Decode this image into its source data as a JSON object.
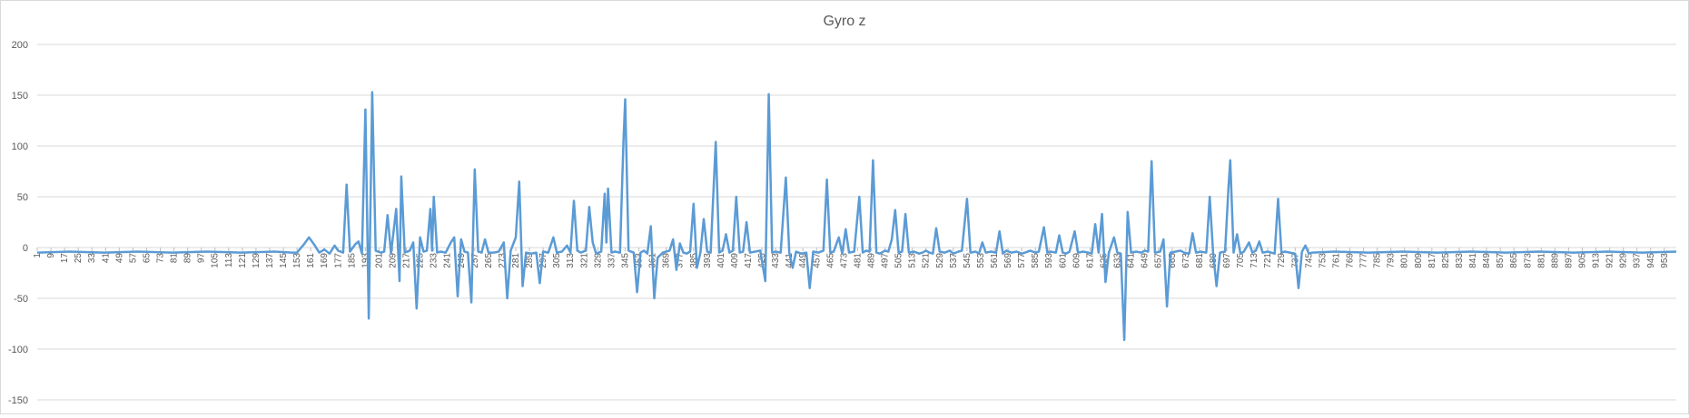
{
  "chart_data": {
    "type": "line",
    "title": "Gyro z",
    "xlabel": "",
    "ylabel": "",
    "ylim": [
      -150,
      200
    ],
    "yticks": [
      200,
      150,
      100,
      50,
      0,
      -50,
      -100,
      -150
    ],
    "x_range": [
      1,
      960
    ],
    "x_tick_step": 8,
    "grid": "horizontal",
    "legend": "none",
    "series": [
      {
        "color": "#5b9bd5",
        "points": [
          [
            1,
            -5
          ],
          [
            20,
            -4
          ],
          [
            40,
            -5
          ],
          [
            60,
            -4
          ],
          [
            80,
            -5
          ],
          [
            100,
            -4
          ],
          [
            120,
            -5
          ],
          [
            140,
            -4
          ],
          [
            150,
            -5
          ],
          [
            153,
            -5
          ],
          [
            157,
            3
          ],
          [
            160,
            10
          ],
          [
            163,
            3
          ],
          [
            166,
            -5
          ],
          [
            169,
            -2
          ],
          [
            172,
            -6
          ],
          [
            175,
            2
          ],
          [
            177,
            -3
          ],
          [
            180,
            -5
          ],
          [
            182,
            62
          ],
          [
            184,
            -4
          ],
          [
            187,
            3
          ],
          [
            189,
            6
          ],
          [
            191,
            -6
          ],
          [
            193,
            136
          ],
          [
            195,
            -70
          ],
          [
            197,
            153
          ],
          [
            199,
            -3
          ],
          [
            202,
            -5
          ],
          [
            204,
            -4
          ],
          [
            206,
            32
          ],
          [
            208,
            -6
          ],
          [
            211,
            38
          ],
          [
            213,
            -33
          ],
          [
            214,
            70
          ],
          [
            216,
            -5
          ],
          [
            219,
            -3
          ],
          [
            221,
            5
          ],
          [
            223,
            -60
          ],
          [
            225,
            10
          ],
          [
            227,
            -4
          ],
          [
            229,
            -3
          ],
          [
            231,
            38
          ],
          [
            232,
            -3
          ],
          [
            233,
            50
          ],
          [
            235,
            -5
          ],
          [
            237,
            -4
          ],
          [
            240,
            -5
          ],
          [
            243,
            5
          ],
          [
            245,
            10
          ],
          [
            247,
            -48
          ],
          [
            249,
            8
          ],
          [
            251,
            -4
          ],
          [
            253,
            -5
          ],
          [
            255,
            -54
          ],
          [
            257,
            77
          ],
          [
            259,
            -4
          ],
          [
            261,
            -5
          ],
          [
            263,
            8
          ],
          [
            265,
            -5
          ],
          [
            268,
            -5
          ],
          [
            271,
            -4
          ],
          [
            274,
            5
          ],
          [
            276,
            -50
          ],
          [
            278,
            -3
          ],
          [
            281,
            10
          ],
          [
            283,
            65
          ],
          [
            285,
            -38
          ],
          [
            287,
            -5
          ],
          [
            290,
            -6
          ],
          [
            293,
            -5
          ],
          [
            295,
            -35
          ],
          [
            297,
            -4
          ],
          [
            300,
            -5
          ],
          [
            303,
            10
          ],
          [
            305,
            -5
          ],
          [
            308,
            -4
          ],
          [
            311,
            2
          ],
          [
            313,
            -5
          ],
          [
            315,
            46
          ],
          [
            317,
            -3
          ],
          [
            319,
            -5
          ],
          [
            322,
            -3
          ],
          [
            324,
            40
          ],
          [
            326,
            5
          ],
          [
            328,
            -6
          ],
          [
            331,
            -4
          ],
          [
            333,
            53
          ],
          [
            334,
            5
          ],
          [
            335,
            58
          ],
          [
            337,
            -5
          ],
          [
            339,
            -4
          ],
          [
            342,
            -5
          ],
          [
            344,
            105
          ],
          [
            345,
            146
          ],
          [
            347,
            -3
          ],
          [
            350,
            -5
          ],
          [
            352,
            -44
          ],
          [
            354,
            -5
          ],
          [
            356,
            -3
          ],
          [
            358,
            -6
          ],
          [
            360,
            21
          ],
          [
            362,
            -50
          ],
          [
            364,
            -10
          ],
          [
            367,
            -5
          ],
          [
            369,
            -4
          ],
          [
            371,
            -3
          ],
          [
            373,
            8
          ],
          [
            375,
            -22
          ],
          [
            377,
            4
          ],
          [
            379,
            -5
          ],
          [
            381,
            -6
          ],
          [
            383,
            -4
          ],
          [
            385,
            43
          ],
          [
            387,
            -20
          ],
          [
            389,
            -5
          ],
          [
            391,
            28
          ],
          [
            393,
            -4
          ],
          [
            395,
            -5
          ],
          [
            398,
            104
          ],
          [
            400,
            -5
          ],
          [
            402,
            -3
          ],
          [
            404,
            13
          ],
          [
            406,
            -5
          ],
          [
            408,
            -3
          ],
          [
            410,
            50
          ],
          [
            412,
            -5
          ],
          [
            414,
            -4
          ],
          [
            416,
            25
          ],
          [
            418,
            -5
          ],
          [
            421,
            -4
          ],
          [
            424,
            -3
          ],
          [
            427,
            -33
          ],
          [
            429,
            151
          ],
          [
            431,
            -5
          ],
          [
            433,
            -4
          ],
          [
            436,
            -5
          ],
          [
            439,
            69
          ],
          [
            441,
            -5
          ],
          [
            443,
            -20
          ],
          [
            445,
            -4
          ],
          [
            448,
            -6
          ],
          [
            451,
            -5
          ],
          [
            453,
            -40
          ],
          [
            455,
            -4
          ],
          [
            458,
            -5
          ],
          [
            461,
            -3
          ],
          [
            463,
            67
          ],
          [
            465,
            -5
          ],
          [
            467,
            -4
          ],
          [
            470,
            10
          ],
          [
            472,
            -6
          ],
          [
            474,
            18
          ],
          [
            476,
            -5
          ],
          [
            479,
            -4
          ],
          [
            482,
            50
          ],
          [
            484,
            -5
          ],
          [
            486,
            -3
          ],
          [
            488,
            -4
          ],
          [
            490,
            86
          ],
          [
            492,
            -5
          ],
          [
            494,
            -6
          ],
          [
            497,
            -3
          ],
          [
            499,
            -4
          ],
          [
            501,
            8
          ],
          [
            503,
            37
          ],
          [
            505,
            -5
          ],
          [
            507,
            -4
          ],
          [
            509,
            33
          ],
          [
            511,
            -5
          ],
          [
            514,
            -4
          ],
          [
            517,
            -6
          ],
          [
            519,
            -5
          ],
          [
            521,
            -3
          ],
          [
            523,
            -5
          ],
          [
            525,
            -6
          ],
          [
            527,
            19
          ],
          [
            529,
            -4
          ],
          [
            532,
            -5
          ],
          [
            535,
            -3
          ],
          [
            537,
            -6
          ],
          [
            540,
            -4
          ],
          [
            542,
            -3
          ],
          [
            545,
            48
          ],
          [
            547,
            -5
          ],
          [
            550,
            -4
          ],
          [
            552,
            -6
          ],
          [
            554,
            5
          ],
          [
            556,
            -5
          ],
          [
            559,
            -4
          ],
          [
            562,
            -5
          ],
          [
            564,
            16
          ],
          [
            566,
            -6
          ],
          [
            568,
            -3
          ],
          [
            571,
            -5
          ],
          [
            574,
            -4
          ],
          [
            577,
            -6
          ],
          [
            579,
            -5
          ],
          [
            582,
            -3
          ],
          [
            585,
            -5
          ],
          [
            587,
            -4
          ],
          [
            590,
            20
          ],
          [
            592,
            -5
          ],
          [
            594,
            -4
          ],
          [
            597,
            -5
          ],
          [
            599,
            12
          ],
          [
            601,
            -5
          ],
          [
            603,
            -6
          ],
          [
            605,
            -4
          ],
          [
            608,
            16
          ],
          [
            610,
            -5
          ],
          [
            613,
            -4
          ],
          [
            616,
            -5
          ],
          [
            618,
            -6
          ],
          [
            620,
            23
          ],
          [
            622,
            -5
          ],
          [
            624,
            33
          ],
          [
            626,
            -34
          ],
          [
            628,
            -5
          ],
          [
            631,
            10
          ],
          [
            633,
            -5
          ],
          [
            635,
            -6
          ],
          [
            637,
            -91
          ],
          [
            639,
            35
          ],
          [
            641,
            -5
          ],
          [
            644,
            -4
          ],
          [
            647,
            -5
          ],
          [
            649,
            -3
          ],
          [
            651,
            -4
          ],
          [
            653,
            85
          ],
          [
            655,
            -5
          ],
          [
            658,
            -4
          ],
          [
            660,
            8
          ],
          [
            662,
            -58
          ],
          [
            664,
            -5
          ],
          [
            667,
            -4
          ],
          [
            670,
            -3
          ],
          [
            672,
            -5
          ],
          [
            675,
            -6
          ],
          [
            677,
            14
          ],
          [
            679,
            -5
          ],
          [
            682,
            -4
          ],
          [
            685,
            -5
          ],
          [
            687,
            50
          ],
          [
            689,
            -5
          ],
          [
            691,
            -38
          ],
          [
            693,
            -5
          ],
          [
            696,
            -4
          ],
          [
            698,
            60
          ],
          [
            699,
            86
          ],
          [
            701,
            -5
          ],
          [
            703,
            13
          ],
          [
            705,
            -6
          ],
          [
            707,
            -4
          ],
          [
            710,
            5
          ],
          [
            712,
            -5
          ],
          [
            714,
            -3
          ],
          [
            716,
            6
          ],
          [
            718,
            -5
          ],
          [
            721,
            -4
          ],
          [
            723,
            -5
          ],
          [
            725,
            -6
          ],
          [
            727,
            48
          ],
          [
            729,
            -5
          ],
          [
            731,
            -4
          ],
          [
            734,
            -5
          ],
          [
            737,
            -6
          ],
          [
            739,
            -40
          ],
          [
            741,
            -4
          ],
          [
            743,
            2
          ],
          [
            745,
            -6
          ],
          [
            747,
            -5
          ],
          [
            760,
            -4
          ],
          [
            780,
            -5
          ],
          [
            800,
            -4
          ],
          [
            820,
            -5
          ],
          [
            840,
            -4
          ],
          [
            860,
            -5
          ],
          [
            880,
            -4
          ],
          [
            900,
            -5
          ],
          [
            920,
            -4
          ],
          [
            940,
            -5
          ],
          [
            960,
            -4
          ]
        ]
      }
    ]
  }
}
